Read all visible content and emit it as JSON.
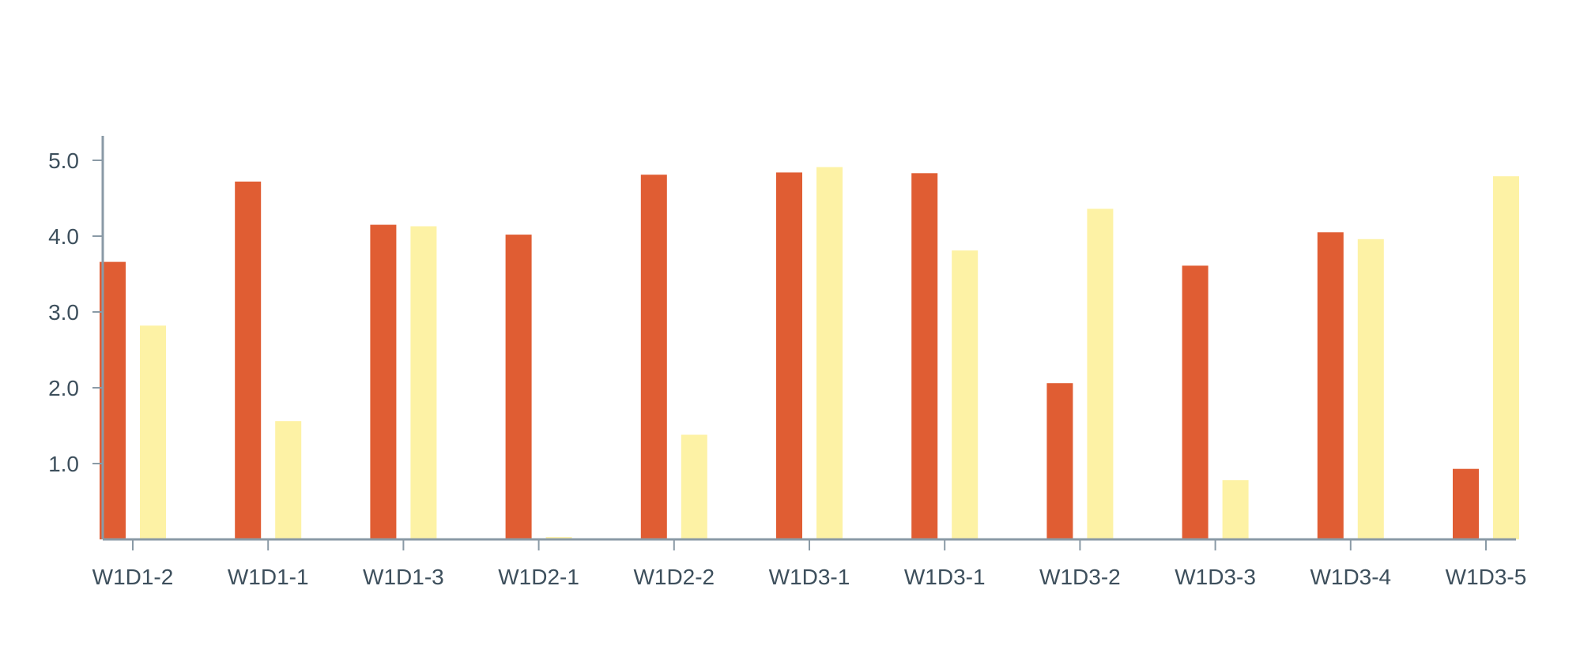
{
  "chart_data": {
    "type": "bar",
    "categories": [
      "W1D1-2",
      "W1D1-1",
      "W1D1-3",
      "W1D2-1",
      "W1D2-2",
      "W1D3-1",
      "W1D3-1",
      "W1D3-2",
      "W1D3-3",
      "W1D3-4",
      "W1D3-5"
    ],
    "series": [
      {
        "values": [
          3.66,
          4.72,
          4.15,
          4.02,
          4.81,
          4.84,
          4.83,
          2.06,
          3.61,
          4.05,
          0.93
        ],
        "color": "#e05d33"
      },
      {
        "values": [
          2.82,
          1.56,
          4.13,
          0.03,
          1.38,
          4.91,
          3.81,
          4.36,
          0.78,
          3.96,
          4.79
        ],
        "color": "#fdf2a5"
      }
    ],
    "yticks": [
      "1.0",
      "2.0",
      "3.0",
      "4.0",
      "5.0"
    ],
    "ylim": [
      0,
      5.5
    ],
    "title": "",
    "xlabel": "",
    "ylabel": "",
    "grid": false,
    "legend": "none"
  }
}
